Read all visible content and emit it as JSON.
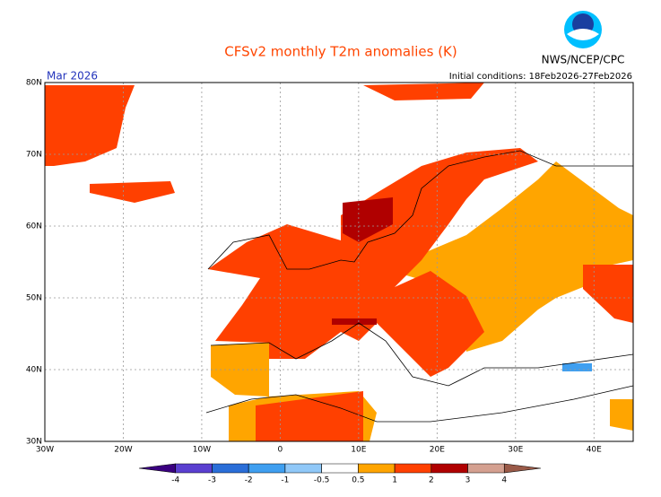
{
  "title": "CFSv2 monthly T2m anomalies (K)",
  "month": "Mar 2026",
  "agency": "NWS/NCEP/CPC",
  "initial_conditions": "Initial conditions: 18Feb2026-27Feb2026",
  "lat_labels": [
    "80N",
    "70N",
    "60N",
    "50N",
    "40N",
    "30N"
  ],
  "lon_labels": [
    "30W",
    "20W",
    "10W",
    "0",
    "10E",
    "20E",
    "30E",
    "40E"
  ],
  "colorbar": {
    "labels": [
      "-4",
      "-3",
      "-2",
      "-1",
      "-0.5",
      "0.5",
      "1",
      "2",
      "3",
      "4"
    ],
    "colors": [
      "#3a0080",
      "#5a3fd0",
      "#2a6ed8",
      "#3f9ff0",
      "#90c8f8",
      "#ffffff",
      "#ffa500",
      "#ff4000",
      "#b00000",
      "#d4a090",
      "#9a5a48"
    ]
  }
}
